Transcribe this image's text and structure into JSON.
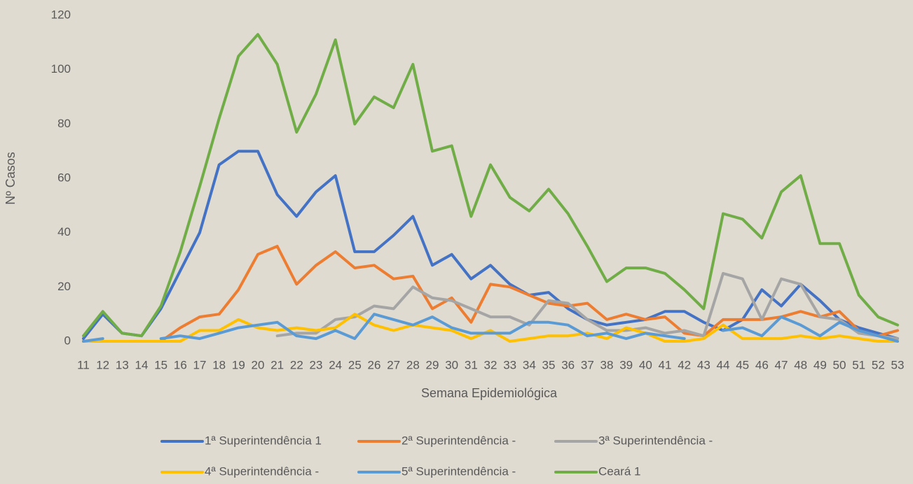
{
  "chart_data": {
    "type": "line",
    "xlabel": "Semana Epidemiológica",
    "ylabel": "Nº Casos",
    "categories": [
      "11",
      "12",
      "13",
      "14",
      "15",
      "16",
      "17",
      "18",
      "19",
      "20",
      "21",
      "22",
      "23",
      "24",
      "25",
      "26",
      "27",
      "28",
      "29",
      "30",
      "31",
      "32",
      "33",
      "34",
      "35",
      "36",
      "37",
      "38",
      "39",
      "40",
      "41",
      "42",
      "43",
      "44",
      "45",
      "46",
      "47",
      "48",
      "49",
      "50",
      "51",
      "52",
      "53"
    ],
    "ylim": [
      0,
      120
    ],
    "yticks": [
      0,
      20,
      40,
      60,
      80,
      100,
      120
    ],
    "grid": false,
    "legend": "bottom",
    "series": [
      {
        "name": "1ª Superintendência 1",
        "color": "#4472c4",
        "values": [
          1,
          10,
          3,
          2,
          12,
          26,
          40,
          65,
          70,
          70,
          54,
          46,
          55,
          61,
          33,
          33,
          39,
          46,
          28,
          32,
          23,
          28,
          21,
          17,
          18,
          12,
          8,
          6,
          7,
          8,
          11,
          11,
          7,
          4,
          8,
          19,
          13,
          21,
          15,
          8,
          5,
          3,
          1
        ]
      },
      {
        "name": "2ª Superintendência -",
        "color": "#ed7d31",
        "values": [
          0,
          0,
          0,
          0,
          0,
          5,
          9,
          10,
          19,
          32,
          35,
          21,
          28,
          33,
          27,
          28,
          23,
          24,
          12,
          16,
          7,
          21,
          20,
          17,
          14,
          13,
          14,
          8,
          10,
          8,
          9,
          3,
          2,
          8,
          8,
          8,
          9,
          11,
          9,
          11,
          4,
          2,
          4
        ]
      },
      {
        "name": "3ª Superintendência -",
        "color": "#a5a5a5",
        "values": [
          null,
          null,
          null,
          null,
          null,
          null,
          null,
          null,
          null,
          null,
          2,
          3,
          3,
          8,
          9,
          13,
          12,
          20,
          16,
          15,
          12,
          9,
          9,
          6,
          15,
          14,
          8,
          4,
          4,
          5,
          3,
          4,
          2,
          25,
          23,
          8,
          23,
          21,
          9,
          8,
          3,
          2,
          1
        ]
      },
      {
        "name": "4ª Superintendência -",
        "color": "#ffc000",
        "values": [
          0,
          0,
          0,
          0,
          0,
          0,
          4,
          4,
          8,
          5,
          4,
          5,
          4,
          5,
          10,
          6,
          4,
          6,
          5,
          4,
          1,
          4,
          0,
          1,
          2,
          2,
          3,
          1,
          5,
          3,
          0,
          0,
          1,
          6,
          1,
          1,
          1,
          2,
          1,
          2,
          1,
          0,
          0
        ]
      },
      {
        "name": "5ª Superintendência -",
        "color": "#5b9bd5",
        "values": [
          0,
          1,
          null,
          null,
          1,
          2,
          1,
          3,
          5,
          6,
          7,
          2,
          1,
          4,
          1,
          10,
          8,
          6,
          9,
          5,
          3,
          3,
          3,
          7,
          7,
          6,
          2,
          3,
          1,
          3,
          2,
          1,
          null,
          4,
          5,
          2,
          9,
          6,
          2,
          7,
          4,
          2,
          0
        ]
      },
      {
        "name": "Ceará 1",
        "color": "#70ad47",
        "values": [
          2,
          11,
          3,
          2,
          13,
          33,
          57,
          82,
          105,
          113,
          102,
          77,
          91,
          111,
          80,
          90,
          86,
          102,
          70,
          72,
          46,
          65,
          53,
          48,
          56,
          47,
          35,
          22,
          27,
          27,
          25,
          19,
          12,
          47,
          45,
          38,
          55,
          61,
          36,
          36,
          17,
          9,
          6
        ]
      }
    ]
  }
}
